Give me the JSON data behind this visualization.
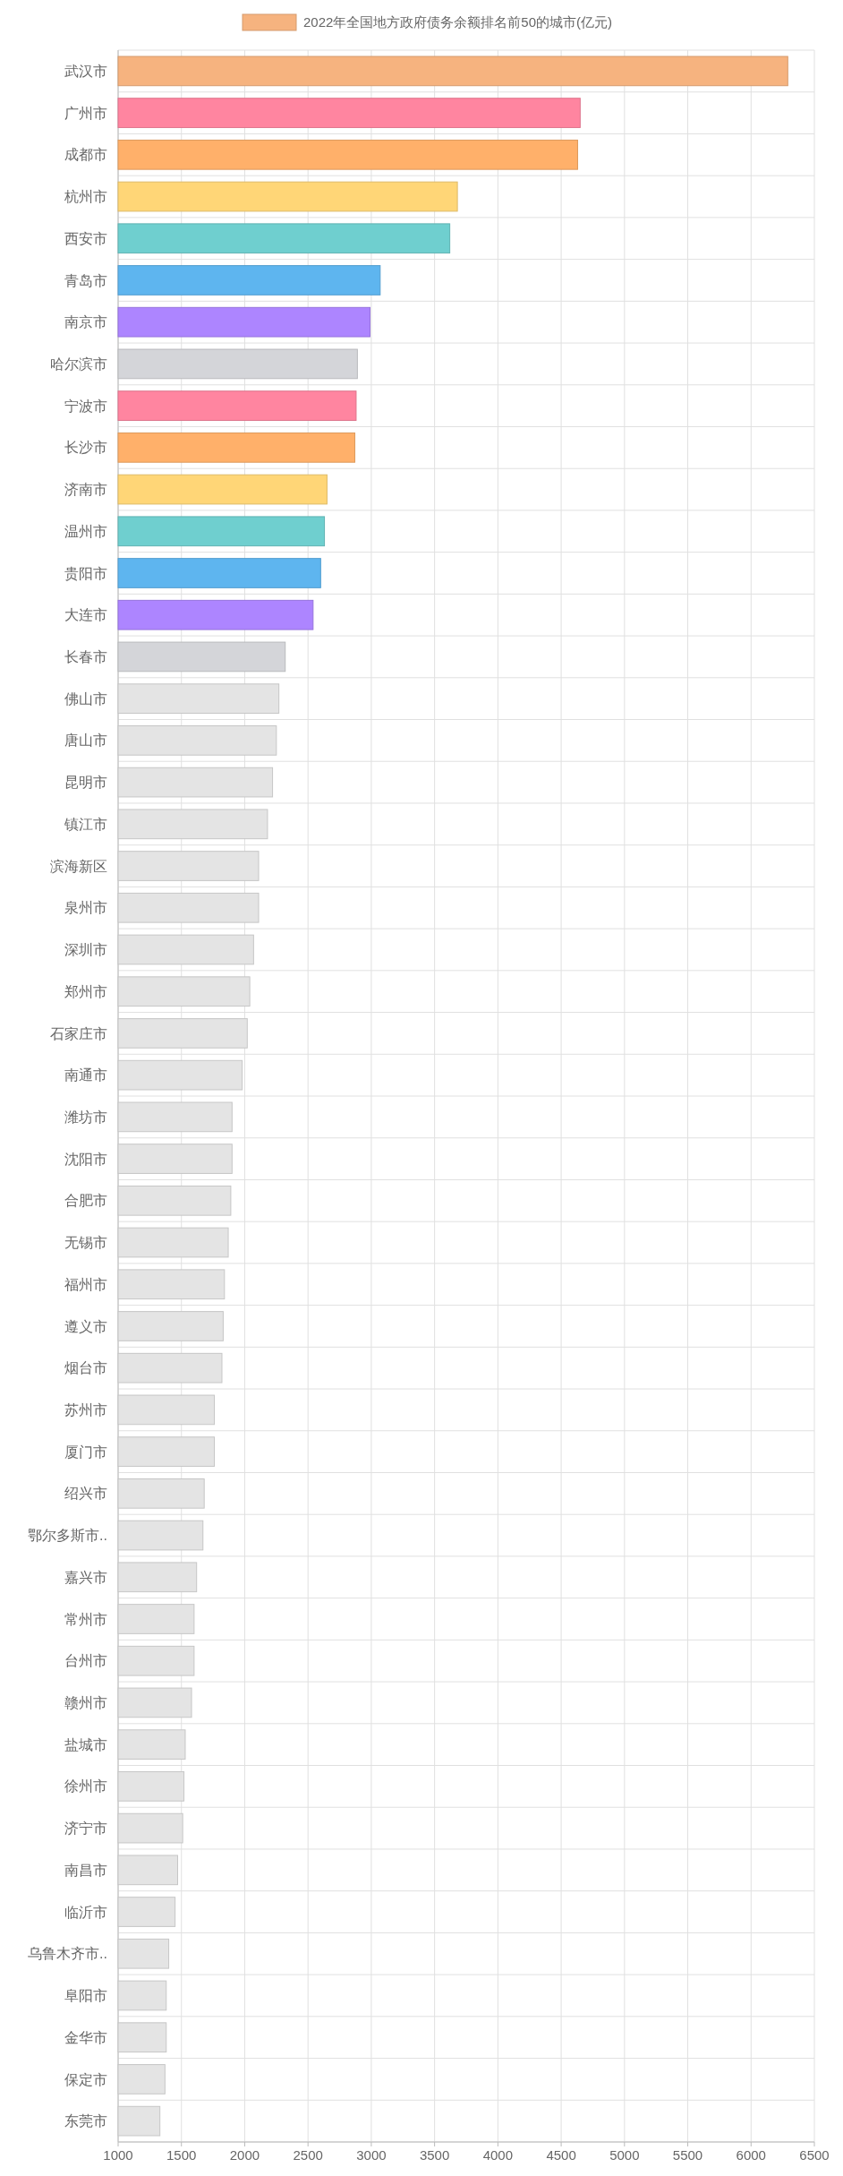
{
  "chart_data": {
    "type": "bar",
    "orientation": "horizontal",
    "legend": "top",
    "grid": true,
    "categories": [
      "武汉市",
      "广州市",
      "成都市",
      "杭州市",
      "西安市",
      "青岛市",
      "南京市",
      "哈尔滨市",
      "宁波市",
      "长沙市",
      "济南市",
      "温州市",
      "贵阳市",
      "大连市",
      "长春市",
      "佛山市",
      "唐山市",
      "昆明市",
      "镇江市",
      "滨海新区",
      "泉州市",
      "深圳市",
      "郑州市",
      "石家庄市",
      "南通市",
      "潍坊市",
      "沈阳市",
      "合肥市",
      "无锡市",
      "福州市",
      "遵义市",
      "烟台市",
      "苏州市",
      "厦门市",
      "绍兴市",
      "鄂尔多斯市..",
      "嘉兴市",
      "常州市",
      "台州市",
      "赣州市",
      "盐城市",
      "徐州市",
      "济宁市",
      "南昌市",
      "临沂市",
      "乌鲁木齐市..",
      "阜阳市",
      "金华市",
      "保定市",
      "东莞市"
    ],
    "series": [
      {
        "name": "2022年全国地方政府债务余额排名前50的城市(亿元)",
        "color": "#f6b37f",
        "values": [
          6290,
          4650,
          4630,
          3680,
          3620,
          3070,
          2990,
          2890,
          2880,
          2870,
          2650,
          2630,
          2600,
          2540,
          2320,
          2270,
          2250,
          2220,
          2180,
          2110,
          2110,
          2070,
          2040,
          2020,
          1980,
          1900,
          1900,
          1890,
          1870,
          1840,
          1830,
          1820,
          1760,
          1760,
          1680,
          1670,
          1620,
          1600,
          1600,
          1580,
          1530,
          1520,
          1510,
          1470,
          1450,
          1400,
          1380,
          1380,
          1370,
          1330
        ],
        "colors": [
          "#f6b37f",
          "#ff85a0",
          "#ffb06a",
          "#ffd677",
          "#6fcfcf",
          "#5eb5ef",
          "#ad85ff",
          "#d4d5d9",
          "#ff85a0",
          "#ffb06a",
          "#ffd677",
          "#6fcfcf",
          "#5eb5ef",
          "#ad85ff",
          "#d4d5d9",
          "#e4e4e4",
          "#e4e4e4",
          "#e4e4e4",
          "#e4e4e4",
          "#e4e4e4",
          "#e4e4e4",
          "#e4e4e4",
          "#e4e4e4",
          "#e4e4e4",
          "#e4e4e4",
          "#e4e4e4",
          "#e4e4e4",
          "#e4e4e4",
          "#e4e4e4",
          "#e4e4e4",
          "#e4e4e4",
          "#e4e4e4",
          "#e4e4e4",
          "#e4e4e4",
          "#e4e4e4",
          "#e4e4e4",
          "#e4e4e4",
          "#e4e4e4",
          "#e4e4e4",
          "#e4e4e4",
          "#e4e4e4",
          "#e4e4e4",
          "#e4e4e4",
          "#e4e4e4",
          "#e4e4e4",
          "#e4e4e4",
          "#e4e4e4",
          "#e4e4e4",
          "#e4e4e4",
          "#e4e4e4"
        ]
      }
    ],
    "xlim": [
      1000,
      6500
    ],
    "xticks": [
      1000,
      1500,
      2000,
      2500,
      3000,
      3500,
      4000,
      4500,
      5000,
      5500,
      6000,
      6500
    ]
  }
}
